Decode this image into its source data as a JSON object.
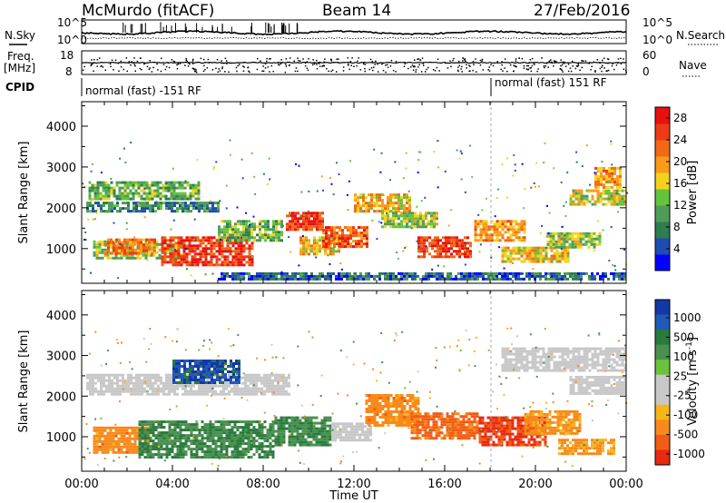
{
  "header": {
    "station": "McMurdo (fitACF)",
    "beam": "Beam 14",
    "date": "27/Feb/2016"
  },
  "left_labels": {
    "nsky": "N.Sky",
    "freq_line1": "Freq.",
    "freq_line2": "[MHz]",
    "cpid": "CPID"
  },
  "right_labels": {
    "nsearch": "N.Search",
    "nave": "Nave"
  },
  "noise_panel": {
    "left_ticks": [
      "10^5",
      "10^0"
    ],
    "right_ticks": [
      "10^5",
      "10^0"
    ]
  },
  "freq_panel": {
    "left_ticks": [
      "18",
      "8"
    ],
    "right_ticks": [
      "60",
      "0"
    ]
  },
  "cpid_panel": {
    "segments": [
      {
        "label": "normal (fast) -151 RF",
        "start_hour": 0,
        "end_hour": 18
      },
      {
        "label": "normal (fast) 151 RF",
        "start_hour": 18,
        "end_hour": 24
      }
    ]
  },
  "time_axis": {
    "label": "Time UT",
    "ticks": [
      "00:00",
      "04:00",
      "08:00",
      "12:00",
      "16:00",
      "20:00",
      "00:00"
    ]
  },
  "colors": {
    "power_scale": [
      "#0000ff",
      "#1e4cb4",
      "#2e7d4f",
      "#4f9c5a",
      "#66c43b",
      "#f4d21c",
      "#f99b1b",
      "#f26a16",
      "#ee3b16",
      "#e8110f"
    ],
    "velocity_scale": [
      "#1438a8",
      "#2159b5",
      "#2a7a3d",
      "#4a9150",
      "#6cc23c",
      "#c8c8c8",
      "#c8c8c8",
      "#f5b51b",
      "#f78a1b",
      "#f25d15",
      "#e82a10"
    ]
  },
  "chart_data": [
    {
      "type": "heatmap",
      "panel": "power",
      "xlabel": "",
      "ylabel": "Slant Range [km]",
      "xlim": [
        0,
        24
      ],
      "ylim": [
        150,
        4600
      ],
      "y_ticks": [
        "1000",
        "2000",
        "3000",
        "4000"
      ],
      "colorbar": {
        "label": "Power [dB]",
        "ticks": [
          "4",
          "8",
          "12",
          "16",
          "20",
          "24",
          "28"
        ],
        "range": [
          0,
          30
        ]
      },
      "regions": [
        {
          "x": [
            0.3,
            5.2
          ],
          "y": [
            2200,
            2650
          ],
          "value": 12
        },
        {
          "x": [
            0.2,
            6.0
          ],
          "y": [
            1900,
            2150
          ],
          "value": 8
        },
        {
          "x": [
            0.5,
            4.5
          ],
          "y": [
            750,
            1200
          ],
          "value": 14
        },
        {
          "x": [
            3.5,
            7.5
          ],
          "y": [
            600,
            1300
          ],
          "value": 26
        },
        {
          "x": [
            1.0,
            3.2
          ],
          "y": [
            900,
            1250
          ],
          "value": 22
        },
        {
          "x": [
            6.0,
            8.8
          ],
          "y": [
            1200,
            1700
          ],
          "value": 12
        },
        {
          "x": [
            9.0,
            10.6
          ],
          "y": [
            1450,
            1900
          ],
          "value": 26
        },
        {
          "x": [
            9.6,
            11.4
          ],
          "y": [
            850,
            1300
          ],
          "value": 18
        },
        {
          "x": [
            10.6,
            12.6
          ],
          "y": [
            1050,
            1550
          ],
          "value": 24
        },
        {
          "x": [
            12.0,
            14.5
          ],
          "y": [
            1900,
            2350
          ],
          "value": 18
        },
        {
          "x": [
            13.2,
            15.6
          ],
          "y": [
            1500,
            1900
          ],
          "value": 14
        },
        {
          "x": [
            14.8,
            17.2
          ],
          "y": [
            800,
            1300
          ],
          "value": 26
        },
        {
          "x": [
            17.3,
            19.5
          ],
          "y": [
            1200,
            1700
          ],
          "value": 20
        },
        {
          "x": [
            18.5,
            21.5
          ],
          "y": [
            650,
            1050
          ],
          "value": 18
        },
        {
          "x": [
            20.5,
            22.8
          ],
          "y": [
            1000,
            1400
          ],
          "value": 14
        },
        {
          "x": [
            21.5,
            24.0
          ],
          "y": [
            2100,
            2450
          ],
          "value": 16
        },
        {
          "x": [
            22.6,
            23.8
          ],
          "y": [
            2500,
            3000
          ],
          "value": 20
        },
        {
          "x": [
            6.0,
            24.0
          ],
          "y": [
            250,
            420
          ],
          "value": 6
        }
      ]
    },
    {
      "type": "heatmap",
      "panel": "velocity",
      "xlabel": "Time UT",
      "ylabel": "Slant Range [km]",
      "xlim": [
        0,
        24
      ],
      "ylim": [
        150,
        4600
      ],
      "y_ticks": [
        "1000",
        "2000",
        "3000",
        "4000"
      ],
      "colorbar": {
        "label": "Velocity [m s^-1]",
        "ticks": [
          "1000",
          "500",
          "100",
          "25",
          "-25",
          "-100",
          "-500",
          "-1000"
        ]
      },
      "regions": [
        {
          "x": [
            0.2,
            9.2
          ],
          "y": [
            2050,
            2550
          ],
          "value": 0
        },
        {
          "x": [
            0.5,
            3.0
          ],
          "y": [
            600,
            1250
          ],
          "value": -200
        },
        {
          "x": [
            2.5,
            8.5
          ],
          "y": [
            500,
            1400
          ],
          "value": 300
        },
        {
          "x": [
            8.5,
            11.0
          ],
          "y": [
            800,
            1500
          ],
          "value": 300
        },
        {
          "x": [
            11.0,
            12.8
          ],
          "y": [
            900,
            1350
          ],
          "value": 0
        },
        {
          "x": [
            12.5,
            14.8
          ],
          "y": [
            1300,
            2050
          ],
          "value": -200
        },
        {
          "x": [
            14.5,
            17.5
          ],
          "y": [
            950,
            1600
          ],
          "value": -400
        },
        {
          "x": [
            17.5,
            20.5
          ],
          "y": [
            800,
            1500
          ],
          "value": -700
        },
        {
          "x": [
            19.5,
            22.0
          ],
          "y": [
            1100,
            1650
          ],
          "value": -150
        },
        {
          "x": [
            21.5,
            24.0
          ],
          "y": [
            2050,
            2500
          ],
          "value": 0
        },
        {
          "x": [
            18.5,
            24.0
          ],
          "y": [
            2600,
            3200
          ],
          "value": 0
        },
        {
          "x": [
            4.0,
            7.0
          ],
          "y": [
            2350,
            2900
          ],
          "value": 700
        },
        {
          "x": [
            21.0,
            23.5
          ],
          "y": [
            600,
            950
          ],
          "value": -120
        }
      ]
    }
  ]
}
